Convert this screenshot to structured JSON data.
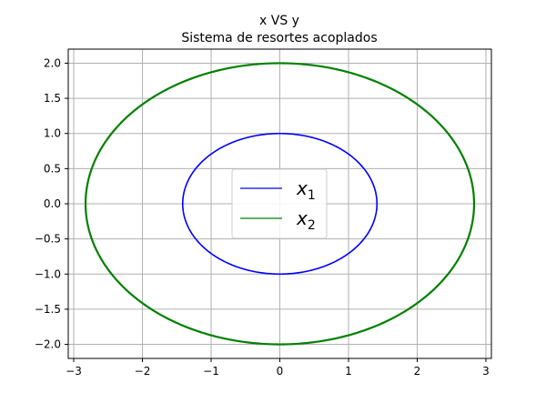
{
  "chart_data": {
    "type": "line",
    "title": "x VS y",
    "subtitle": "Sistema de resortes acoplados",
    "xlabel": "",
    "ylabel": "",
    "xlim": [
      -3.08,
      3.08
    ],
    "ylim": [
      -2.2,
      2.2
    ],
    "xticks": [
      -3,
      -2,
      -1,
      0,
      1,
      2,
      3
    ],
    "yticks": [
      -2.0,
      -1.5,
      -1.0,
      -0.5,
      0.0,
      0.5,
      1.0,
      1.5,
      2.0
    ],
    "xtick_labels": [
      "−3",
      "−2",
      "−1",
      "0",
      "1",
      "2",
      "3"
    ],
    "ytick_labels": [
      "−2.0",
      "−1.5",
      "−1.0",
      "−0.5",
      "0.0",
      "0.5",
      "1.0",
      "1.5",
      "2.0"
    ],
    "grid": true,
    "legend_position": "center",
    "series": [
      {
        "name": "x",
        "name_subscript": "1",
        "color": "#0000ff",
        "shape": "ellipse",
        "x_semi_axis": 1.414,
        "y_semi_axis": 1.0,
        "center": [
          0,
          0
        ],
        "sample_points": [
          [
            1.414,
            0
          ],
          [
            0,
            1.0
          ],
          [
            -1.414,
            0
          ],
          [
            0,
            -1.0
          ]
        ]
      },
      {
        "name": "x",
        "name_subscript": "2",
        "color": "#008000",
        "shape": "ellipse",
        "x_semi_axis": 2.828,
        "y_semi_axis": 2.0,
        "center": [
          0,
          0
        ],
        "sample_points": [
          [
            2.828,
            0
          ],
          [
            0,
            2.0
          ],
          [
            -2.828,
            0
          ],
          [
            0,
            -2.0
          ]
        ]
      }
    ]
  }
}
